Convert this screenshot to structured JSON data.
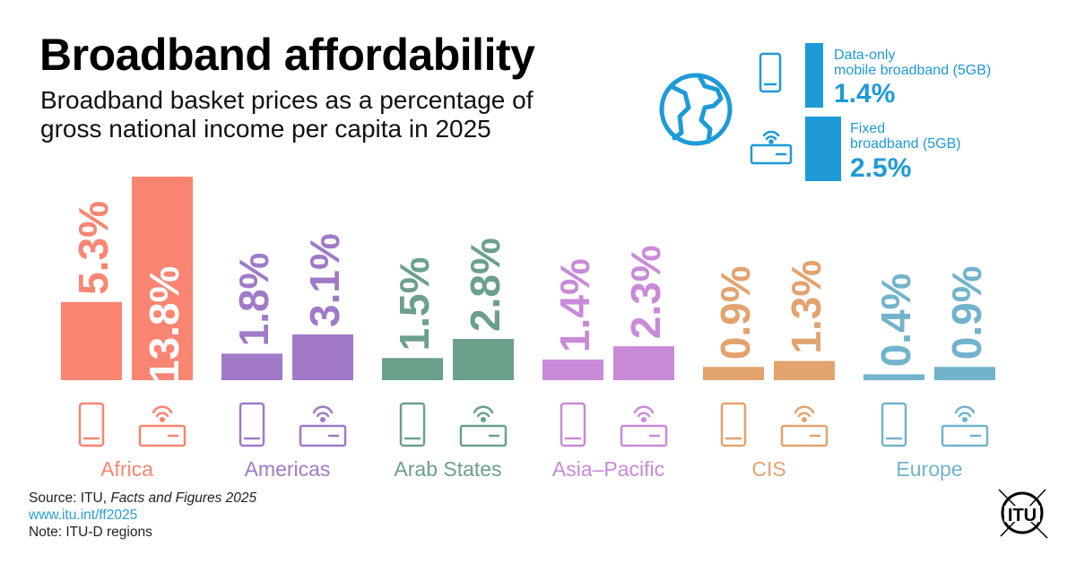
{
  "title": "Broadband affordability",
  "subtitle_line1": "Broadband basket prices as a percentage of",
  "subtitle_line2": "gross national income per capita in 2025",
  "legend": {
    "mobile_line1": "Data-only",
    "mobile_line2": "mobile broadband (5GB)",
    "mobile_value": "1.4%",
    "fixed_line1": "Fixed",
    "fixed_line2": "broadband (5GB)",
    "fixed_value": "2.5%",
    "color": "#1e9ad6"
  },
  "chart_data": {
    "type": "bar",
    "title": "Broadband affordability",
    "subtitle": "Broadband basket prices as a percentage of gross national income per capita in 2025",
    "categories": [
      "Africa",
      "Americas",
      "Arab States",
      "Asia–Pacific",
      "CIS",
      "Europe"
    ],
    "colors": [
      "#f98572",
      "#a07ac8",
      "#6ba08a",
      "#c98ad8",
      "#e2a36e",
      "#72b3cc"
    ],
    "series": [
      {
        "name": "Data-only mobile broadband (5GB)",
        "values": [
          5.3,
          1.8,
          1.5,
          1.4,
          0.9,
          0.4
        ],
        "labels": [
          "5.3%",
          "1.8%",
          "1.5%",
          "1.4%",
          "0.9%",
          "0.4%"
        ]
      },
      {
        "name": "Fixed broadband (5GB)",
        "values": [
          13.8,
          3.1,
          2.8,
          2.3,
          1.3,
          0.9
        ],
        "labels": [
          "13.8%",
          "3.1%",
          "2.8%",
          "2.3%",
          "1.3%",
          "0.9%"
        ]
      }
    ],
    "global": {
      "mobile": 1.4,
      "fixed": 2.5
    },
    "unit": "%"
  },
  "source": {
    "prefix": "Source: ITU, ",
    "publication": "Facts and Figures 2025",
    "url": "www.itu.int/ff2025",
    "note": "Note: ITU-D regions"
  },
  "logo_text": "ITU"
}
